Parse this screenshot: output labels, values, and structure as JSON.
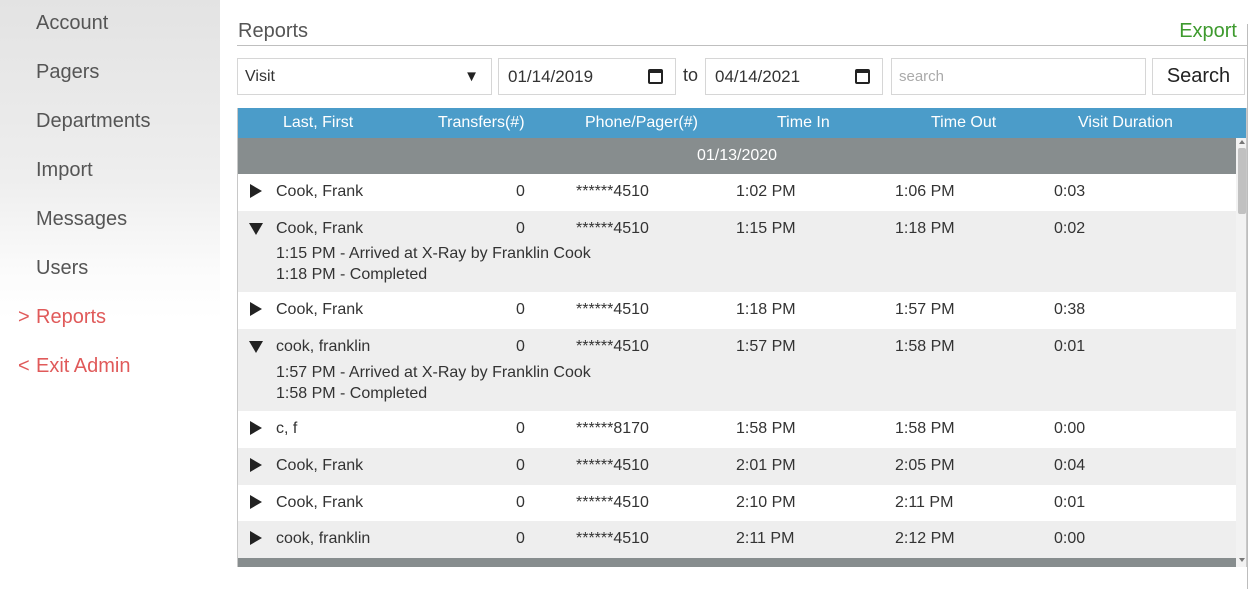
{
  "sidebar": {
    "items": [
      {
        "label": "Account"
      },
      {
        "label": "Pagers"
      },
      {
        "label": "Departments"
      },
      {
        "label": "Import"
      },
      {
        "label": "Messages"
      },
      {
        "label": "Users"
      },
      {
        "label": "Reports",
        "chevron": ">"
      },
      {
        "label": "Exit Admin",
        "chevron": "<"
      }
    ],
    "accent_color": "#e05a5a"
  },
  "header": {
    "title": "Reports",
    "export_label": "Export",
    "export_color": "#3e9a2e"
  },
  "filters": {
    "type_value": "Visit",
    "caret": "▼",
    "date_from": "01/14/2019",
    "to_label": "to",
    "date_to": "04/14/2021",
    "search_placeholder": "search",
    "search_label": "Search"
  },
  "table": {
    "header_color": "#4b9cc9",
    "columns": [
      "Last, First",
      "Transfers(#)",
      "Phone/Pager(#)",
      "Time In",
      "Time Out",
      "Visit Duration"
    ],
    "group_label": "01/13/2020",
    "rows": [
      {
        "name": "Cook, Frank",
        "transfers": "0",
        "phone": "******4510",
        "time_in": "1:02 PM",
        "time_out": "1:06 PM",
        "duration": "0:03",
        "expanded": false,
        "details": []
      },
      {
        "name": "Cook, Frank",
        "transfers": "0",
        "phone": "******4510",
        "time_in": "1:15 PM",
        "time_out": "1:18 PM",
        "duration": "0:02",
        "expanded": true,
        "details": [
          "1:15 PM - Arrived at X-Ray by Franklin Cook",
          "1:18 PM - Completed"
        ]
      },
      {
        "name": "Cook, Frank",
        "transfers": "0",
        "phone": "******4510",
        "time_in": "1:18 PM",
        "time_out": "1:57 PM",
        "duration": "0:38",
        "expanded": false,
        "details": []
      },
      {
        "name": "cook, franklin",
        "transfers": "0",
        "phone": "******4510",
        "time_in": "1:57 PM",
        "time_out": "1:58 PM",
        "duration": "0:01",
        "expanded": true,
        "details": [
          "1:57 PM - Arrived at X-Ray by Franklin Cook",
          "1:58 PM - Completed"
        ]
      },
      {
        "name": "c, f",
        "transfers": "0",
        "phone": "******8170",
        "time_in": "1:58 PM",
        "time_out": "1:58 PM",
        "duration": "0:00",
        "expanded": false,
        "details": []
      },
      {
        "name": "Cook, Frank",
        "transfers": "0",
        "phone": "******4510",
        "time_in": "2:01 PM",
        "time_out": "2:05 PM",
        "duration": "0:04",
        "expanded": false,
        "details": []
      },
      {
        "name": "Cook, Frank",
        "transfers": "0",
        "phone": "******4510",
        "time_in": "2:10 PM",
        "time_out": "2:11 PM",
        "duration": "0:01",
        "expanded": false,
        "details": []
      },
      {
        "name": "cook, franklin",
        "transfers": "0",
        "phone": "******4510",
        "time_in": "2:11 PM",
        "time_out": "2:12 PM",
        "duration": "0:00",
        "expanded": false,
        "details": []
      }
    ]
  }
}
